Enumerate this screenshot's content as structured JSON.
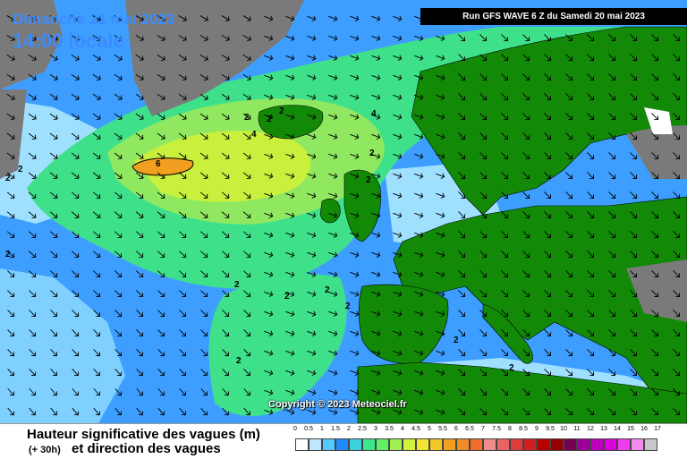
{
  "header": {
    "date": "Dimanche 21 mai 2023",
    "time": "14:00 locale",
    "run": "Run GFS WAVE 6 Z du Samedi 20 mai 2023"
  },
  "copyright": "Copyright © 2023 Meteociel.fr",
  "contour_labels": [
    "2",
    "2",
    "2",
    "2",
    "2",
    "2",
    "2",
    "4",
    "4",
    "6",
    "2",
    "2",
    "2",
    "2",
    "2",
    "2",
    "2",
    "2"
  ],
  "legend": {
    "title_line1": "Hauteur significative des vagues (m)",
    "title_line2": "et direction des vagues",
    "hours": "(+ 30h)",
    "ticks": [
      "0",
      "0.5",
      "1",
      "1.5",
      "2",
      "2.5",
      "3",
      "3.5",
      "4",
      "4.5",
      "5",
      "5.5",
      "6",
      "6.5",
      "7",
      "7.5",
      "8",
      "8.5",
      "9",
      "9.5",
      "10",
      "11",
      "12",
      "13",
      "14",
      "15",
      "16",
      "17"
    ],
    "colors": [
      "#ffffff",
      "#bfe6ff",
      "#55c8ff",
      "#1e8cff",
      "#3cd2dc",
      "#3ce68c",
      "#64f064",
      "#a0f050",
      "#d2f03c",
      "#f0e632",
      "#f0c828",
      "#f0a01e",
      "#f08c28",
      "#f06e28",
      "#ee8c8c",
      "#e66464",
      "#dc3c3c",
      "#d21e1e",
      "#b40000",
      "#960000",
      "#780050",
      "#9b009b",
      "#be00be",
      "#dc00dc",
      "#f03cf0",
      "#f08cf0",
      "#c8c8c8"
    ]
  },
  "colors": {
    "land": "#138a07",
    "ice": "#7a7a7a",
    "sea_light": "#9fe0ff",
    "sea_mid": "#3e9eff",
    "sea_green": "#3fe08a",
    "sea_yellow": "#b8f03c",
    "sea_orange": "#f0a01e",
    "title_blue": "#3a8cff"
  },
  "map": {
    "arrow_icon": "wave-direction-arrow-icon"
  }
}
